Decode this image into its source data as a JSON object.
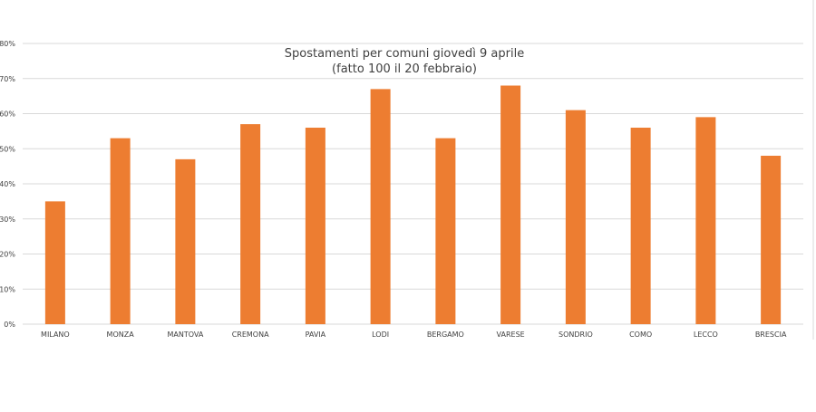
{
  "chart_data": {
    "type": "bar",
    "title": "Spostamenti per comuni giovedì 9 aprile",
    "subtitle": "(fatto 100 il 20 febbraio)",
    "categories": [
      "MILANO",
      "MONZA",
      "MANTOVA",
      "CREMONA",
      "PAVIA",
      "LODI",
      "BERGAMO",
      "VARESE",
      "SONDRIO",
      "COMO",
      "LECCO",
      "BRESCIA"
    ],
    "values": [
      35,
      53,
      47,
      57,
      56,
      67,
      53,
      68,
      61,
      56,
      59,
      48
    ],
    "ylim": [
      0,
      80
    ],
    "yticks": [
      "0%",
      "10%",
      "20%",
      "30%",
      "40%",
      "50%",
      "60%",
      "70%",
      "80%"
    ],
    "xlabel": "",
    "ylabel": "",
    "grid": true,
    "bar_color": "#ED7D31",
    "grid_color": "#D9D9D9"
  }
}
